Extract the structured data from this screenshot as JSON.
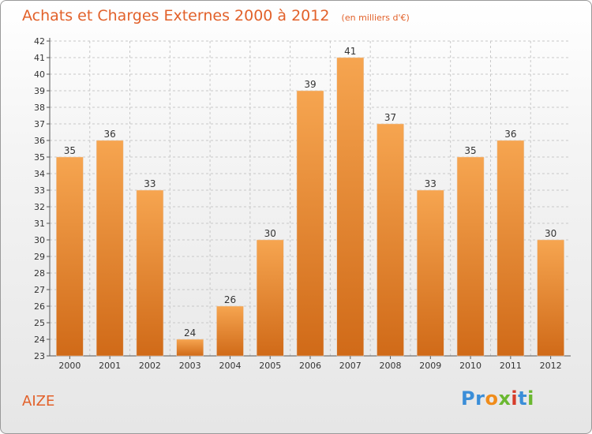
{
  "chart_data": {
    "type": "bar",
    "title": "Achats et Charges Externes 2000 à 2012",
    "subtitle": "(en milliers d'€)",
    "categories": [
      "2000",
      "2001",
      "2002",
      "2003",
      "2004",
      "2005",
      "2006",
      "2007",
      "2008",
      "2009",
      "2010",
      "2011",
      "2012"
    ],
    "values": [
      35,
      36,
      33,
      24,
      26,
      30,
      39,
      41,
      37,
      33,
      35,
      36,
      30
    ],
    "ylim": [
      23,
      42
    ],
    "yticks": [
      23,
      24,
      25,
      26,
      27,
      28,
      29,
      30,
      31,
      32,
      33,
      34,
      35,
      36,
      37,
      38,
      39,
      40,
      41,
      42
    ],
    "xlabel": "",
    "ylabel": "",
    "grid": true,
    "colors": {
      "bar_top": "#f6a550",
      "bar_bottom": "#d06a18",
      "title": "#e2612a"
    }
  },
  "footer": {
    "commune": "AIZE",
    "logo": {
      "p1": "Pr",
      "p2": "o",
      "p3": "x",
      "p4": "i",
      "p5": "t",
      "p6": "i"
    }
  }
}
